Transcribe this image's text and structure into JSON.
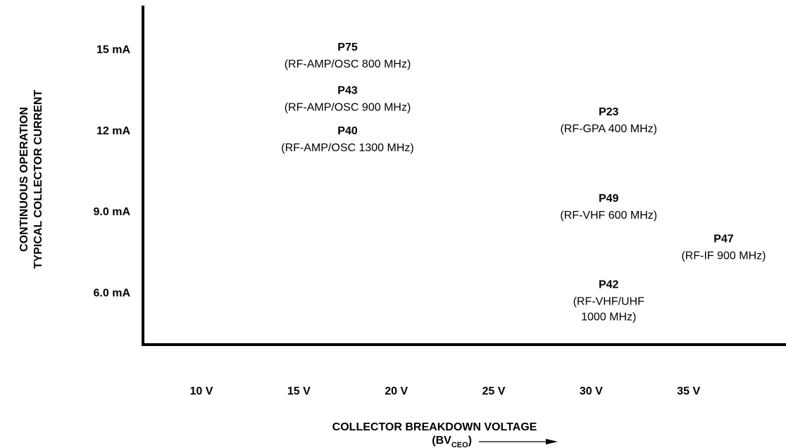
{
  "chart_data": {
    "type": "scatter",
    "x_label": "COLLECTOR BREAKDOWN VOLTAGE",
    "x_label_symbol": {
      "prefix": "(BV",
      "sub": "CEO",
      "suffix": ")"
    },
    "y_label": [
      "CONTINUOUS OPERATION",
      "TYPICAL COLLECTOR CURRENT"
    ],
    "labels": [
      "P75",
      "P43",
      "P40",
      "P23",
      "P49",
      "P47",
      "P42"
    ],
    "descriptions": [
      [
        "(RF-AMP/OSC 800 MHz)"
      ],
      [
        "(RF-AMP/OSC 900 MHz)"
      ],
      [
        "(RF-AMP/OSC 1300 MHz)"
      ],
      [
        "(RF-GPA 400 MHz)"
      ],
      [
        "(RF-VHF 600 MHz)"
      ],
      [
        "(RF-IF 900 MHz)"
      ],
      [
        "(RF-VHF/UHF",
        "1000 MHz)"
      ]
    ],
    "x": [
      17.5,
      17.5,
      17.5,
      30.9,
      30.9,
      36.8,
      30.9
    ],
    "values": [
      15.1,
      13.5,
      12.0,
      12.7,
      9.5,
      8.0,
      6.3
    ],
    "color": "#000000",
    "xlim": [
      7,
      40
    ],
    "xticks": [
      {
        "value": 10,
        "label": "10 V"
      },
      {
        "value": 15,
        "label": "15 V"
      },
      {
        "value": 20,
        "label": "20 V"
      },
      {
        "value": 25,
        "label": "25 V"
      },
      {
        "value": 30,
        "label": "30 V"
      },
      {
        "value": 35,
        "label": "35 V"
      }
    ],
    "ylim": [
      4.1,
      16.6
    ],
    "yticks": [
      {
        "value": 6,
        "label": "6.0 mA"
      },
      {
        "value": 9,
        "label": "9.0 mA"
      },
      {
        "value": 12,
        "label": "12 mA"
      },
      {
        "value": 15,
        "label": "15 mA"
      }
    ],
    "grid": false
  }
}
